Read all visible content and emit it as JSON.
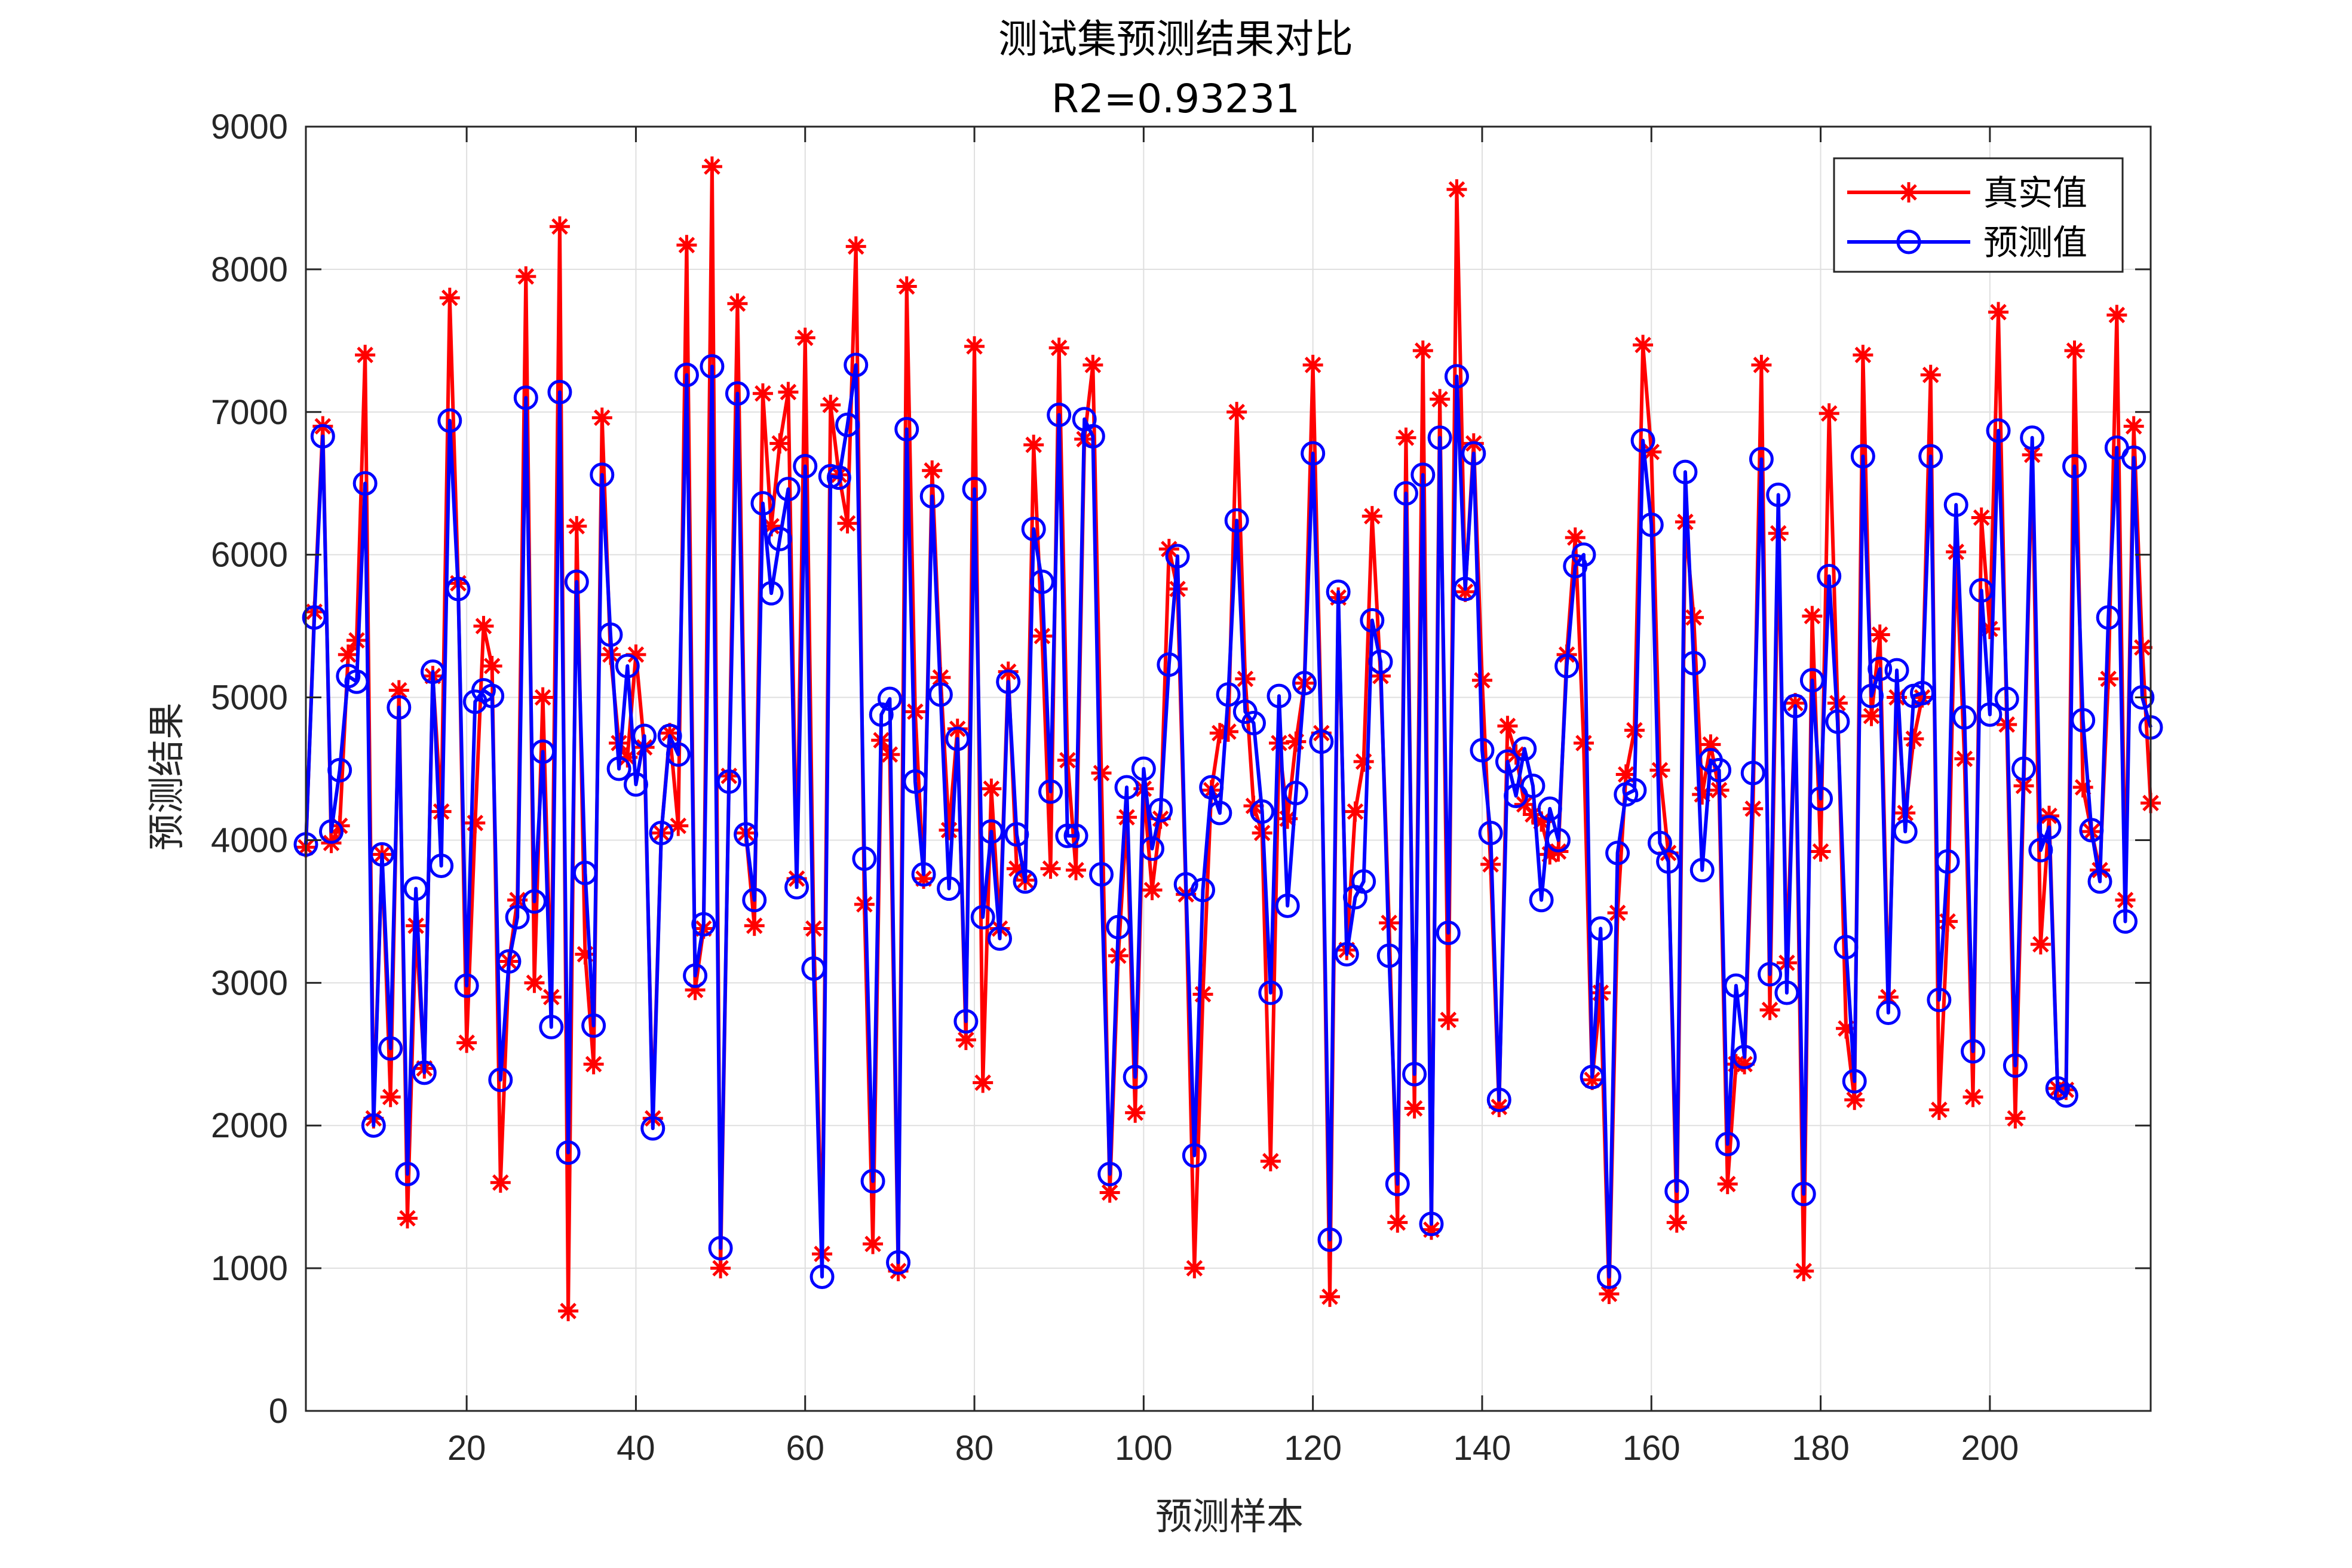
{
  "chart_data": {
    "type": "line",
    "title": "测试集预测结果对比",
    "subtitle": "R2=0.93231",
    "xlabel": "预测样本",
    "ylabel": "预测结果",
    "xlim": [
      1,
      219
    ],
    "ylim": [
      0,
      9000
    ],
    "xticks": [
      20,
      40,
      60,
      80,
      100,
      120,
      140,
      160,
      180,
      200
    ],
    "yticks": [
      0,
      1000,
      2000,
      3000,
      4000,
      5000,
      6000,
      7000,
      8000,
      9000
    ],
    "grid": true,
    "legend_position": "top-right",
    "colors": {
      "actual": "#ff0000",
      "predicted": "#0000ff",
      "grid": "#dfdfdf",
      "axis": "#262626"
    },
    "series": [
      {
        "name": "真实值",
        "marker": "asterisk",
        "values": [
          3950,
          5600,
          6900,
          3980,
          4100,
          5300,
          5400,
          7400,
          2050,
          3900,
          2200,
          5050,
          1350,
          3400,
          2400,
          5150,
          4200,
          7800,
          5800,
          2580,
          4120,
          5500,
          5220,
          1600,
          3150,
          3580,
          7950,
          3000,
          5000,
          2900,
          8300,
          700,
          6200,
          3200,
          2430,
          6960,
          5300,
          4680,
          4580,
          5300,
          4650,
          2050,
          4050,
          4750,
          4100,
          8170,
          2950,
          3380,
          8720,
          1000,
          4450,
          7760,
          4050,
          3400,
          7130,
          6200,
          6780,
          7140,
          3730,
          7520,
          3380,
          1100,
          7050,
          6560,
          6220,
          8160,
          3550,
          1170,
          4700,
          4600,
          980,
          7880,
          4900,
          3730,
          6590,
          5140,
          4070,
          4780,
          2600,
          7460,
          2300,
          4360,
          3380,
          5180,
          3800,
          3720,
          6770,
          5430,
          3800,
          7450,
          4560,
          3790,
          6810,
          7330,
          4470,
          1530,
          3190,
          4160,
          2090,
          4360,
          3650,
          4150,
          6040,
          5760,
          3620,
          1000,
          2920,
          4350,
          4750,
          4760,
          7000,
          5130,
          4240,
          4050,
          1750,
          4680,
          4150,
          4690,
          5100,
          7330,
          4750,
          800,
          5700,
          3230,
          4200,
          4550,
          6270,
          5150,
          3420,
          1320,
          6820,
          2120,
          7430,
          1270,
          7090,
          2740,
          8560,
          5740,
          6780,
          5120,
          3830,
          2130,
          4800,
          4600,
          4250,
          4180,
          4130,
          3900,
          3920,
          5300,
          6120,
          4680,
          2320,
          2930,
          820,
          3490,
          4460,
          4770,
          7470,
          6720,
          4490,
          3910,
          1320,
          6230,
          5560,
          4320,
          4670,
          4350,
          1590,
          2430,
          2430,
          4220,
          7330,
          2810,
          6150,
          3140,
          4960,
          980,
          5570,
          3920,
          6990,
          4960,
          2680,
          2180,
          7400,
          4870,
          5440,
          2900,
          5000,
          4190,
          4710,
          5000,
          7260,
          2110,
          3430,
          6020,
          4570,
          2200,
          6260,
          5480,
          7700,
          4810,
          2050,
          4380,
          6700,
          3270,
          4170,
          2260,
          2250,
          7430,
          4370,
          4060,
          3790,
          5130,
          7680,
          3580,
          6900,
          5350,
          4260
        ]
      },
      {
        "name": "预测值",
        "marker": "circle",
        "values": [
          3970,
          5560,
          6830,
          4060,
          4490,
          5150,
          5110,
          6500,
          2000,
          3900,
          2540,
          4930,
          1660,
          3660,
          2370,
          5180,
          3820,
          6940,
          5760,
          2980,
          4970,
          5050,
          5010,
          2320,
          3150,
          3460,
          7100,
          3570,
          4620,
          2690,
          7140,
          1810,
          5810,
          3770,
          2700,
          6560,
          5440,
          4500,
          5220,
          4390,
          4730,
          1980,
          4050,
          4730,
          4600,
          7260,
          3050,
          3410,
          7320,
          1140,
          4410,
          7130,
          4040,
          3580,
          6360,
          5730,
          6110,
          6460,
          3670,
          6620,
          3100,
          940,
          6550,
          6540,
          6910,
          7330,
          3870,
          1610,
          4880,
          4990,
          1040,
          6880,
          4410,
          3760,
          6410,
          5020,
          3660,
          4710,
          2730,
          6460,
          3460,
          4060,
          3310,
          5110,
          4040,
          3710,
          6180,
          5810,
          4340,
          6980,
          4030,
          4030,
          6950,
          6830,
          3760,
          1660,
          3390,
          4370,
          2340,
          4500,
          3940,
          4210,
          5230,
          5990,
          3690,
          1790,
          3650,
          4370,
          4190,
          5020,
          6240,
          4900,
          4820,
          4200,
          2930,
          5010,
          3540,
          4330,
          5100,
          6710,
          4690,
          1200,
          5740,
          3200,
          3600,
          3710,
          5540,
          5250,
          3190,
          1590,
          6430,
          2360,
          6560,
          1310,
          6820,
          3350,
          7250,
          5760,
          6710,
          4630,
          4050,
          2180,
          4550,
          4310,
          4640,
          4380,
          3580,
          4220,
          4000,
          5220,
          5920,
          6000,
          2340,
          3380,
          940,
          3910,
          4320,
          4350,
          6800,
          6210,
          3980,
          3850,
          1540,
          6580,
          5240,
          3790,
          4560,
          4490,
          1870,
          2980,
          2480,
          4470,
          6670,
          3060,
          6420,
          2930,
          4940,
          1520,
          5120,
          4290,
          5850,
          4830,
          3250,
          2310,
          6690,
          5010,
          5200,
          2790,
          5190,
          4060,
          5010,
          5030,
          6690,
          2880,
          3850,
          6350,
          4860,
          2520,
          5750,
          4880,
          6870,
          4990,
          2420,
          4500,
          6820,
          3930,
          4090,
          2260,
          2210,
          6620,
          4840,
          4070,
          3710,
          5560,
          6750,
          3430,
          6680,
          5000,
          4790
        ]
      }
    ]
  }
}
